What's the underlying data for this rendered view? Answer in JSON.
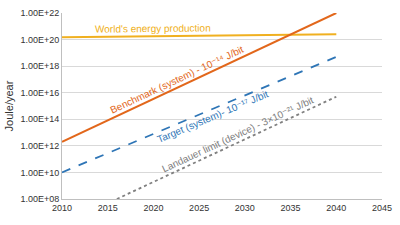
{
  "chart_data": {
    "type": "line",
    "y_label": "Joule/year",
    "log": "y",
    "grid": true,
    "xlim": [
      2010,
      2045
    ],
    "xticks": [
      2010,
      2015,
      2020,
      2025,
      2030,
      2035,
      2040,
      2045
    ],
    "ylim": [
      100000000.0,
      1e+22
    ],
    "yticks": [
      {
        "value": 100000000.0,
        "label": "1.00E+08"
      },
      {
        "value": 10000000000.0,
        "label": "1.00E+10"
      },
      {
        "value": 1000000000000.0,
        "label": "1.00E+12"
      },
      {
        "value": 100000000000000.0,
        "label": "1.00E+14"
      },
      {
        "value": 1e+16,
        "label": "1.00E+16"
      },
      {
        "value": 1e+18,
        "label": "1.00E+18"
      },
      {
        "value": 1e+20,
        "label": "1.00E+20"
      },
      {
        "value": 1e+22,
        "label": "1.00E+22"
      }
    ],
    "series": [
      {
        "name": "World's energy production",
        "color": "#f0b020",
        "line_style": "solid",
        "x": [
          2010,
          2040
        ],
        "values": [
          1.5e+20,
          2.5e+20
        ]
      },
      {
        "name": "Benchmark (system) - 10⁻¹⁴ J/bit",
        "color": "#e2671b",
        "line_style": "solid",
        "x": [
          2010,
          2040
        ],
        "values": [
          2000000000000.0,
          1e+22
        ]
      },
      {
        "name": "Target (system)- 10⁻¹⁷ J/bit",
        "color": "#2e75b6",
        "line_style": "dash",
        "x": [
          2010,
          2040
        ],
        "values": [
          10000000000.0,
          5e+18
        ]
      },
      {
        "name": "Landauer limit (device) - 3×10⁻²¹ J/bit",
        "color": "#808080",
        "line_style": "dot",
        "x": [
          2016,
          2040
        ],
        "values": [
          100000000.0,
          5000000000000000.0
        ]
      }
    ]
  }
}
